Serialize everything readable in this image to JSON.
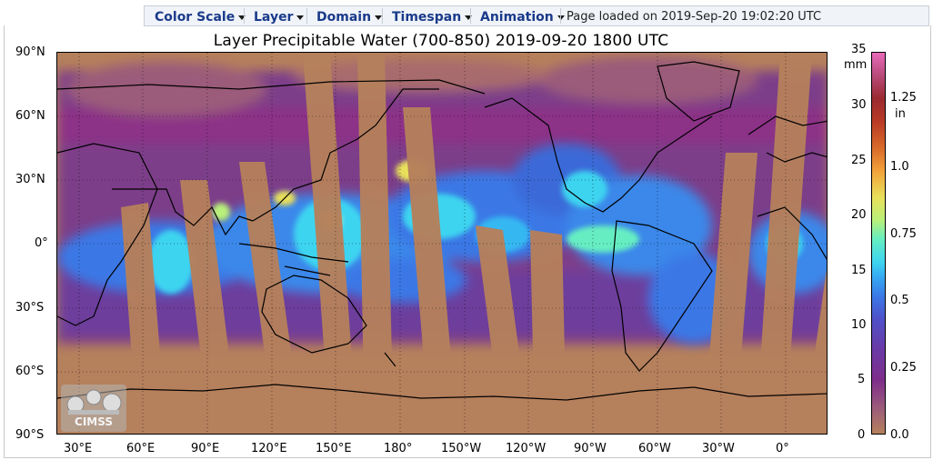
{
  "toolbar": {
    "menus": [
      {
        "label": "Color Scale"
      },
      {
        "label": "Layer"
      },
      {
        "label": "Domain"
      },
      {
        "label": "Timespan"
      },
      {
        "label": "Animation"
      }
    ],
    "status": "Page loaded on 2019-Sep-20 19:02:20 UTC"
  },
  "map": {
    "title": "Layer Precipitable Water (700-850)  2019-09-20 1800 UTC",
    "lat_labels": [
      "90°N",
      "60°N",
      "30°N",
      "0°",
      "30°S",
      "60°S",
      "90°S"
    ],
    "lon_labels": [
      "30°E",
      "60°E",
      "90°E",
      "120°E",
      "150°E",
      "180°",
      "150°W",
      "120°W",
      "90°W",
      "60°W",
      "30°W",
      "0°"
    ],
    "logo_text": "CIMSS"
  },
  "colorbar": {
    "unit_mm": "mm",
    "unit_in": "in",
    "mm_labels": [
      "35",
      "30",
      "25",
      "20",
      "15",
      "10",
      "5",
      "0"
    ],
    "in_labels": [
      "1.25",
      "1.0",
      "0.75",
      "0.5",
      "0.25",
      "0.0"
    ]
  },
  "colors": {
    "dry": "#b5805c",
    "low": "#7e2e8a",
    "mid": "#3a78e6",
    "high": "#e8e05a",
    "menu_text": "#1a3a8a"
  }
}
